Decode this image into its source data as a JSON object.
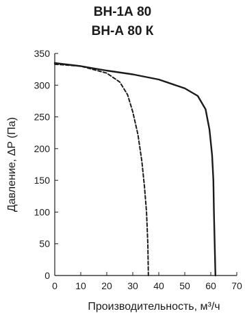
{
  "chart_data": {
    "type": "line",
    "title": [
      "ВН-1А 80",
      "ВН-А 80 К"
    ],
    "xlabel": "Производительность, м³/ч",
    "ylabel": "Давление, ΔP (Па)",
    "xlim": [
      0,
      70
    ],
    "ylim": [
      0,
      350
    ],
    "xticks": [
      "0",
      "10",
      "20",
      "30",
      "40",
      "50",
      "60",
      "70"
    ],
    "yticks": [
      "0",
      "50",
      "100",
      "150",
      "200",
      "250",
      "300",
      "350"
    ],
    "grid": false,
    "series": [
      {
        "style": "solid",
        "points": [
          [
            0,
            335
          ],
          [
            10,
            330
          ],
          [
            20,
            323
          ],
          [
            30,
            317
          ],
          [
            40,
            309
          ],
          [
            50,
            295
          ],
          [
            55,
            283
          ],
          [
            58,
            262
          ],
          [
            59.5,
            230
          ],
          [
            60.5,
            190
          ],
          [
            61,
            150
          ],
          [
            61.2,
            100
          ],
          [
            61.5,
            50
          ],
          [
            61.8,
            0
          ]
        ]
      },
      {
        "style": "dashed",
        "points": [
          [
            0,
            333
          ],
          [
            10,
            330
          ],
          [
            20,
            319
          ],
          [
            25,
            305
          ],
          [
            28,
            285
          ],
          [
            30,
            258
          ],
          [
            32,
            222
          ],
          [
            33.5,
            180
          ],
          [
            34.5,
            140
          ],
          [
            35.3,
            100
          ],
          [
            35.8,
            50
          ],
          [
            36,
            0
          ]
        ]
      }
    ]
  }
}
